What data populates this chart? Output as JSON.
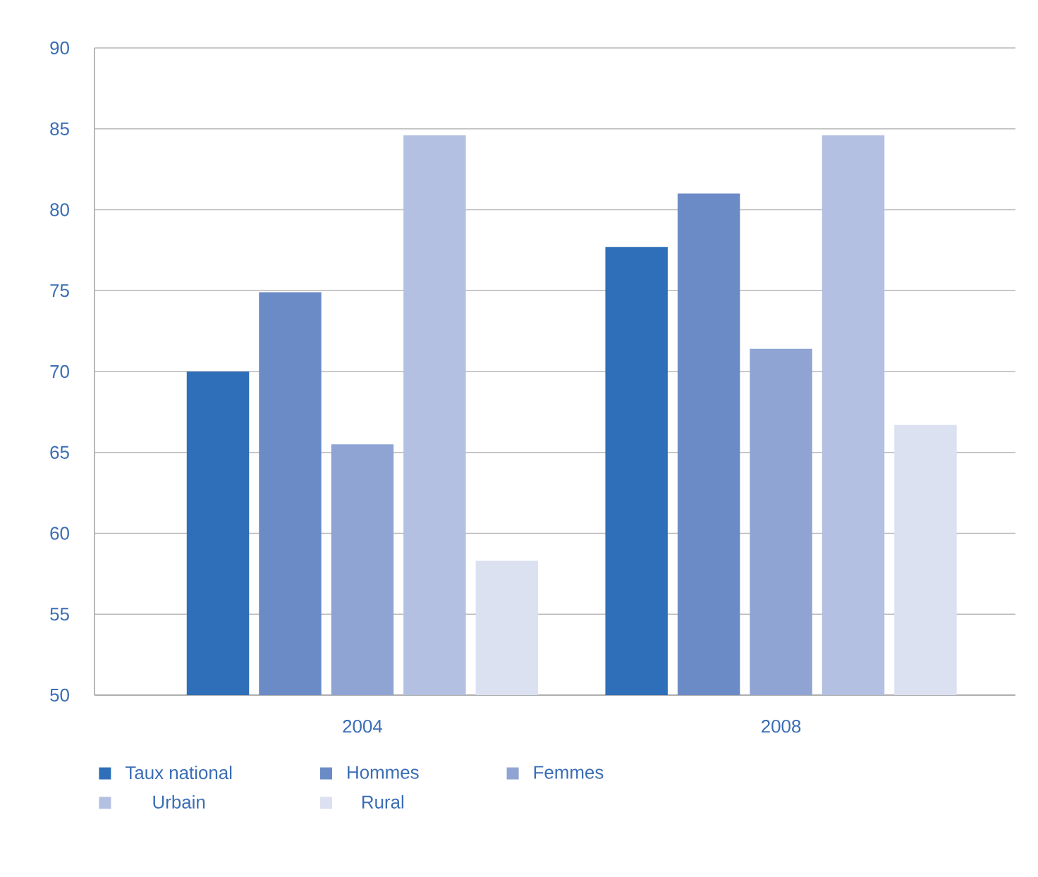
{
  "chart_data": {
    "type": "bar",
    "categories": [
      "2004",
      "2008"
    ],
    "series": [
      {
        "name": "Taux national",
        "color": "#2f6eb8",
        "values": [
          70.0,
          77.7
        ]
      },
      {
        "name": "Hommes",
        "color": "#6b8bc6",
        "values": [
          74.9,
          81.0
        ]
      },
      {
        "name": "Femmes",
        "color": "#8fa4d3",
        "values": [
          65.5,
          71.4
        ]
      },
      {
        "name": "Urbain",
        "color": "#b3c0e2",
        "values": [
          84.6,
          84.6
        ]
      },
      {
        "name": "Rural",
        "color": "#dbe1f1",
        "values": [
          58.3,
          66.7
        ]
      }
    ],
    "ylim": [
      50,
      90
    ],
    "yticks": [
      50,
      55,
      60,
      65,
      70,
      75,
      80,
      85,
      90
    ],
    "grid": "y",
    "legend": "bottom"
  }
}
